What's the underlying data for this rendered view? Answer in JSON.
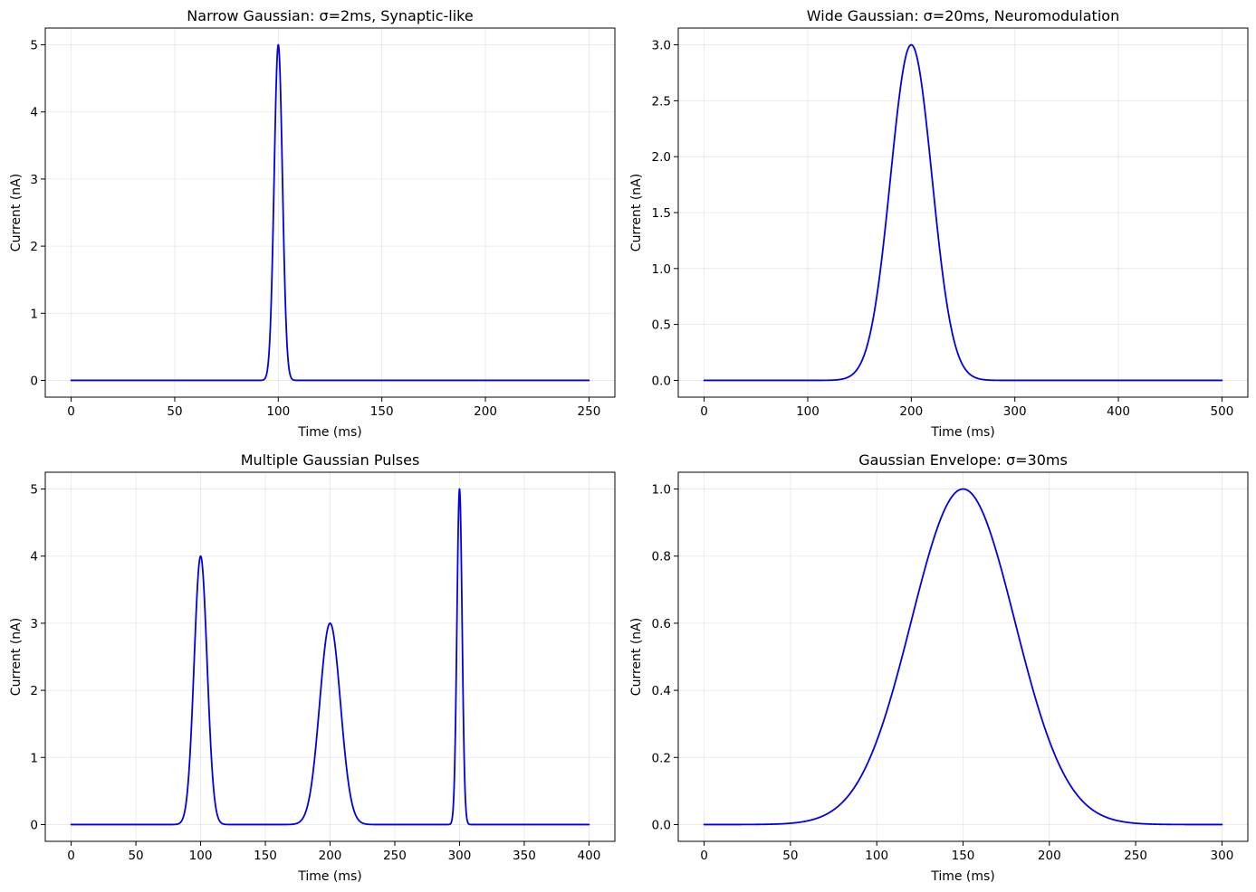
{
  "chart_data": [
    {
      "type": "line",
      "title": "Narrow Gaussian: σ=2ms, Synaptic-like",
      "xlabel": "Time (ms)",
      "ylabel": "Current (nA)",
      "xlim": [
        -12.5,
        262.5
      ],
      "ylim": [
        -0.25,
        5.25
      ],
      "xticks": [
        0,
        50,
        100,
        150,
        200,
        250
      ],
      "xtick_labels": [
        "0",
        "50",
        "100",
        "150",
        "200",
        "250"
      ],
      "yticks": [
        0,
        1,
        2,
        3,
        4,
        5
      ],
      "ytick_labels": [
        "0",
        "1",
        "2",
        "3",
        "4",
        "5"
      ],
      "grid": true,
      "series": [
        {
          "color": "#0000ee",
          "x_range": [
            0,
            250
          ],
          "pulses": [
            {
              "center": 100,
              "sigma": 2,
              "amplitude": 5
            }
          ]
        }
      ]
    },
    {
      "type": "line",
      "title": "Wide Gaussian: σ=20ms, Neuromodulation",
      "xlabel": "Time (ms)",
      "ylabel": "Current (nA)",
      "xlim": [
        -25,
        525
      ],
      "ylim": [
        -0.15,
        3.15
      ],
      "xticks": [
        0,
        100,
        200,
        300,
        400,
        500
      ],
      "xtick_labels": [
        "0",
        "100",
        "200",
        "300",
        "400",
        "500"
      ],
      "yticks": [
        0,
        0.5,
        1,
        1.5,
        2,
        2.5,
        3
      ],
      "ytick_labels": [
        "0.0",
        "0.5",
        "1.0",
        "1.5",
        "2.0",
        "2.5",
        "3.0"
      ],
      "grid": true,
      "series": [
        {
          "color": "#0000ee",
          "x_range": [
            0,
            500
          ],
          "pulses": [
            {
              "center": 200,
              "sigma": 20,
              "amplitude": 3
            }
          ]
        }
      ]
    },
    {
      "type": "line",
      "title": "Multiple Gaussian Pulses",
      "xlabel": "Time (ms)",
      "ylabel": "Current (nA)",
      "xlim": [
        -20,
        420
      ],
      "ylim": [
        -0.25,
        5.25
      ],
      "xticks": [
        0,
        50,
        100,
        150,
        200,
        250,
        300,
        350,
        400
      ],
      "xtick_labels": [
        "0",
        "50",
        "100",
        "150",
        "200",
        "250",
        "300",
        "350",
        "400"
      ],
      "yticks": [
        0,
        1,
        2,
        3,
        4,
        5
      ],
      "ytick_labels": [
        "0",
        "1",
        "2",
        "3",
        "4",
        "5"
      ],
      "grid": true,
      "series": [
        {
          "color": "#0000ee",
          "x_range": [
            0,
            400
          ],
          "pulses": [
            {
              "center": 100,
              "sigma": 5,
              "amplitude": 4
            },
            {
              "center": 200,
              "sigma": 8,
              "amplitude": 3
            },
            {
              "center": 300,
              "sigma": 2,
              "amplitude": 5
            }
          ]
        }
      ]
    },
    {
      "type": "line",
      "title": "Gaussian Envelope: σ=30ms",
      "xlabel": "Time (ms)",
      "ylabel": "Current (nA)",
      "xlim": [
        -15,
        315
      ],
      "ylim": [
        -0.05,
        1.05
      ],
      "xticks": [
        0,
        50,
        100,
        150,
        200,
        250,
        300
      ],
      "xtick_labels": [
        "0",
        "50",
        "100",
        "150",
        "200",
        "250",
        "300"
      ],
      "yticks": [
        0,
        0.2,
        0.4,
        0.6,
        0.8,
        1
      ],
      "ytick_labels": [
        "0.0",
        "0.2",
        "0.4",
        "0.6",
        "0.8",
        "1.0"
      ],
      "grid": true,
      "series": [
        {
          "color": "#0000ee",
          "x_range": [
            0,
            300
          ],
          "pulses": [
            {
              "center": 150,
              "sigma": 30,
              "amplitude": 1
            }
          ]
        }
      ]
    }
  ]
}
